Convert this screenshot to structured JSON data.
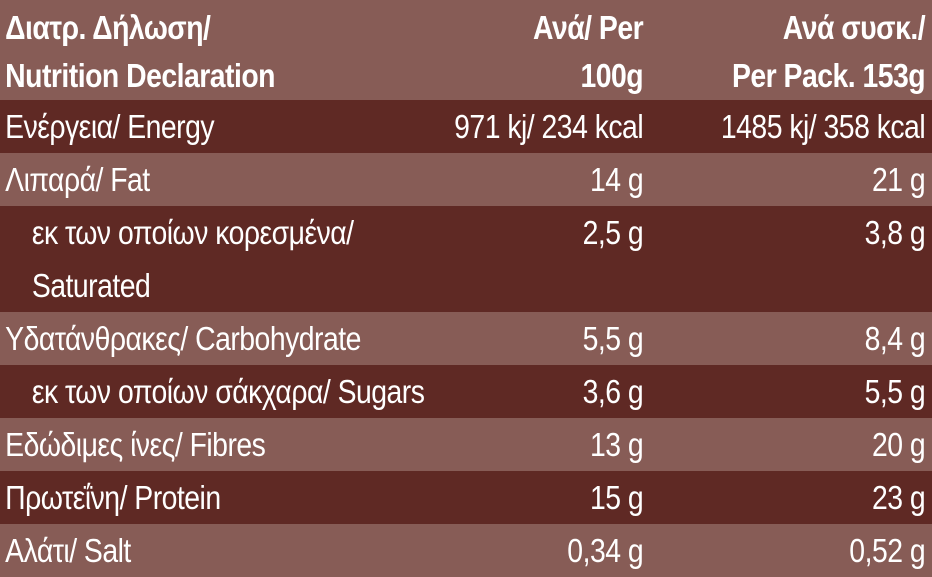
{
  "header": {
    "col1": [
      "Διατρ. Δήλωση/",
      "Nutrition Declaration"
    ],
    "col2": [
      "Ανά/ Per",
      "100g"
    ],
    "col3": [
      "Ανά συσκ./",
      "Per Pack. 153g"
    ]
  },
  "rows": [
    {
      "label": "Ενέργεια/ Energy",
      "per100": "971 kj/ 234 kcal",
      "perPack": "1485 kj/ 358 kcal"
    },
    {
      "label": "Λιπαρά/ Fat",
      "per100": "14 g",
      "perPack": "21 g"
    },
    {
      "label_lines": [
        "εκ των οποίων κορεσμένα/",
        "Saturated"
      ],
      "per100": "2,5 g",
      "perPack": "3,8 g"
    },
    {
      "label": "Υδατάνθρακες/ Carbohydrate",
      "per100": "5,5 g",
      "perPack": "8,4 g"
    },
    {
      "label": "εκ των οποίων σάκχαρα/ Sugars",
      "per100": "3,6 g",
      "perPack": "5,5 g"
    },
    {
      "label": "Εδώδιμες ίνες/ Fibres",
      "per100": "13 g",
      "perPack": "20 g"
    },
    {
      "label": "Πρωτεΐνη/ Protein",
      "per100": "15 g",
      "perPack": "23 g"
    },
    {
      "label": "Αλάτι/ Salt",
      "per100": "0,34 g",
      "perPack": "0,52 g"
    }
  ],
  "colors": {
    "light": "#875c56",
    "dark": "#5f2924",
    "text": "#ffffff"
  }
}
